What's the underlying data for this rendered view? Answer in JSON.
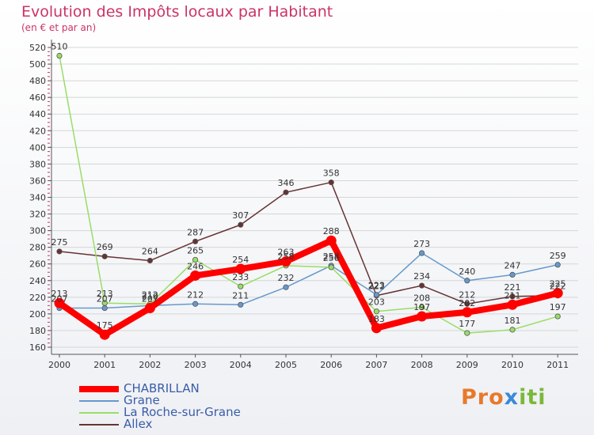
{
  "chart_data": {
    "type": "line",
    "title": "Evolution des Impôts locaux par Habitant",
    "subtitle": "(en € et par an)",
    "categories": [
      "2000",
      "2001",
      "2002",
      "2003",
      "2004",
      "2005",
      "2006",
      "2007",
      "2008",
      "2009",
      "2010",
      "2011"
    ],
    "ylim": [
      160,
      520
    ],
    "yticks": [
      160,
      180,
      200,
      220,
      240,
      260,
      280,
      300,
      320,
      340,
      360,
      380,
      400,
      420,
      440,
      460,
      480,
      500,
      520
    ],
    "series": [
      {
        "name": "CHABRILLAN",
        "color": "#ff0000",
        "values": [
          213,
          175,
          207,
          246,
          254,
          263,
          288,
          183,
          197,
          202,
          211,
          225
        ]
      },
      {
        "name": "Grane",
        "color": "#6699cc",
        "values": [
          207,
          207,
          210,
          212,
          211,
          232,
          258,
          223,
          273,
          240,
          247,
          259
        ]
      },
      {
        "name": "La Roche-sur-Grane",
        "color": "#99dd66",
        "values": [
          510,
          213,
          212,
          265,
          233,
          258,
          256,
          203,
          208,
          177,
          181,
          197
        ]
      },
      {
        "name": "Allex",
        "color": "#663333",
        "values": [
          275,
          269,
          264,
          287,
          307,
          346,
          358,
          222,
          234,
          212,
          221,
          222
        ]
      }
    ]
  },
  "logo": {
    "p1": "Pro",
    "p2": "x",
    "p3": "iti"
  }
}
